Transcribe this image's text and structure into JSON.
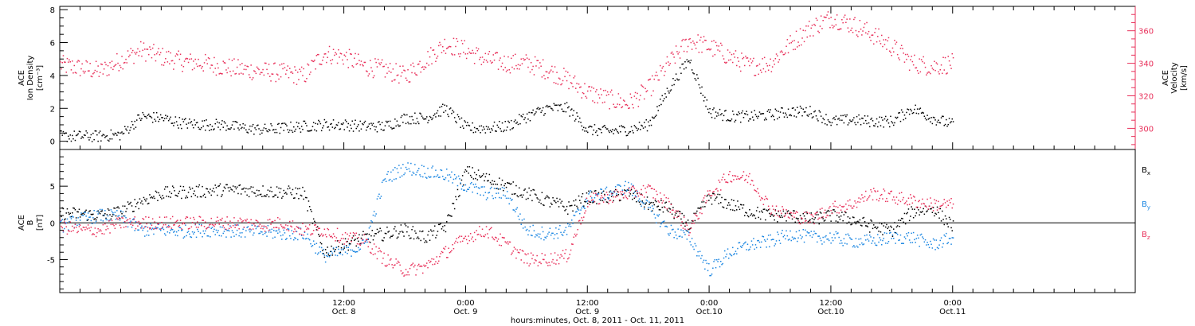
{
  "figure": {
    "xlabel": "hours:minutes, Oct.  8, 2011 - Oct. 11, 2011",
    "x_range_hours": [
      -64.0,
      42.0
    ],
    "x_ticks": [
      {
        "hour": -36,
        "time": "12:00",
        "date": "Oct. 8"
      },
      {
        "hour": -24,
        "time": "0:00",
        "date": "Oct. 9"
      },
      {
        "hour": -12,
        "time": "12:00",
        "date": "Oct. 9"
      },
      {
        "hour": 0,
        "time": "0:00",
        "date": "Oct.10"
      },
      {
        "hour": 12,
        "time": "12:00",
        "date": "Oct.10"
      },
      {
        "hour": 24,
        "time": "0:00",
        "date": "Oct.11"
      }
    ],
    "colors": {
      "black": "#000000",
      "pink": "#e8305a",
      "blue": "#1a86e2"
    }
  },
  "chart_data": [
    {
      "type": "scatter",
      "panel": "plasma",
      "ylabel_left": [
        "ACE",
        "Ion Density",
        "[cm⁻³]"
      ],
      "ylabel_right": [
        "ACE",
        "Velocity",
        "[km/s]"
      ],
      "ylim_left": [
        -0.5,
        8.2
      ],
      "ylim_right": [
        287,
        375
      ],
      "yticks_left": [
        0,
        2,
        4,
        6,
        8
      ],
      "yticks_right": [
        300,
        320,
        340,
        360
      ],
      "x_hours": [
        -64,
        -62,
        -60,
        -58,
        -56,
        -54,
        -52,
        -50,
        -48,
        -46,
        -44,
        -42,
        -40,
        -38,
        -36,
        -34,
        -32,
        -30,
        -28,
        -26,
        -24,
        -22,
        -20,
        -18,
        -16,
        -14,
        -12,
        -10,
        -8,
        -6,
        -4,
        -2,
        0,
        2,
        4,
        6,
        8,
        10,
        12,
        14,
        16,
        18,
        20,
        22,
        24
      ],
      "series": [
        {
          "axis": "left",
          "color": "#000000",
          "values": [
            0.3,
            0.3,
            0.3,
            0.4,
            1.5,
            1.4,
            1.1,
            1.0,
            1.0,
            0.8,
            0.7,
            0.8,
            0.9,
            1.0,
            1.0,
            0.9,
            0.9,
            1.4,
            1.4,
            2.0,
            0.8,
            0.8,
            0.9,
            1.5,
            2.0,
            2.0,
            0.7,
            0.6,
            0.7,
            1.0,
            3.2,
            5.0,
            1.8,
            1.5,
            1.5,
            1.6,
            1.8,
            1.8,
            1.2,
            1.3,
            1.2,
            1.2,
            2.0,
            1.4,
            1.0
          ]
        },
        {
          "axis": "right",
          "color": "#e8305a",
          "values": [
            339,
            337,
            335,
            342,
            348,
            344,
            341,
            340,
            338,
            336,
            335,
            334,
            332,
            346,
            344,
            338,
            336,
            332,
            342,
            352,
            348,
            342,
            340,
            340,
            336,
            330,
            322,
            318,
            315,
            324,
            340,
            354,
            350,
            344,
            338,
            340,
            352,
            362,
            368,
            364,
            358,
            350,
            340,
            338,
            340
          ]
        }
      ]
    },
    {
      "type": "scatter",
      "panel": "magnetic-field",
      "ylabel": [
        "ACE",
        "B",
        "[nT]"
      ],
      "ylim": [
        -9.5,
        10
      ],
      "yticks": [
        -5,
        0,
        5
      ],
      "zero_line": true,
      "x_hours": [
        -64,
        -62,
        -60,
        -58,
        -56,
        -54,
        -52,
        -50,
        -48,
        -46,
        -44,
        -42,
        -40,
        -38,
        -36,
        -34,
        -32,
        -30,
        -28,
        -26,
        -24,
        -22,
        -20,
        -18,
        -16,
        -14,
        -12,
        -10,
        -8,
        -6,
        -4,
        -2,
        0,
        2,
        4,
        6,
        8,
        10,
        12,
        14,
        16,
        18,
        20,
        22,
        24
      ],
      "series": [
        {
          "name": "B",
          "subscript": "x",
          "color": "#000000",
          "values": [
            1.3,
            1.2,
            1.0,
            1.5,
            3.0,
            4.0,
            4.2,
            4.3,
            4.5,
            4.5,
            4.3,
            4.2,
            4.0,
            -4.0,
            -3.0,
            -2.0,
            -1.5,
            -1.0,
            -2.0,
            -0.5,
            7.0,
            6.0,
            5.0,
            4.0,
            3.0,
            2.0,
            3.5,
            3.5,
            4.0,
            2.5,
            2.0,
            -0.5,
            3.5,
            2.5,
            1.5,
            1.0,
            1.0,
            0.5,
            1.0,
            0.5,
            -0.5,
            -1.0,
            1.5,
            2.0,
            -0.5
          ]
        },
        {
          "name": "B",
          "subscript": "y",
          "color": "#1a86e2",
          "values": [
            -0.5,
            0.5,
            1.0,
            0.8,
            -1.0,
            -1.0,
            -1.2,
            -1.0,
            -1.0,
            -1.2,
            -1.2,
            -1.5,
            -1.5,
            -4.5,
            -4.0,
            -3.0,
            6.0,
            7.5,
            7.0,
            6.5,
            5.0,
            4.0,
            4.0,
            -1.0,
            -1.5,
            -1.0,
            3.5,
            4.0,
            5.0,
            2.0,
            -1.0,
            -2.0,
            -6.5,
            -4.0,
            -3.0,
            -2.5,
            -1.5,
            -2.0,
            -2.0,
            -2.5,
            -2.5,
            -2.0,
            -2.0,
            -3.0,
            -2.0
          ]
        },
        {
          "name": "B",
          "subscript": "z",
          "color": "#e8305a",
          "values": [
            -0.5,
            -1.0,
            -1.0,
            0.0,
            0.0,
            0.0,
            0.0,
            0.0,
            0.0,
            0.0,
            -0.3,
            0.0,
            -1.0,
            -1.0,
            -2.0,
            -2.5,
            -5.0,
            -6.5,
            -6.0,
            -4.0,
            -2.0,
            -1.0,
            -3.0,
            -5.0,
            -5.0,
            -4.5,
            3.0,
            3.5,
            4.0,
            4.5,
            2.5,
            -1.0,
            4.0,
            6.5,
            6.0,
            2.0,
            1.0,
            0.5,
            2.0,
            2.5,
            4.0,
            3.5,
            3.0,
            2.5,
            2.5
          ]
        }
      ]
    }
  ]
}
